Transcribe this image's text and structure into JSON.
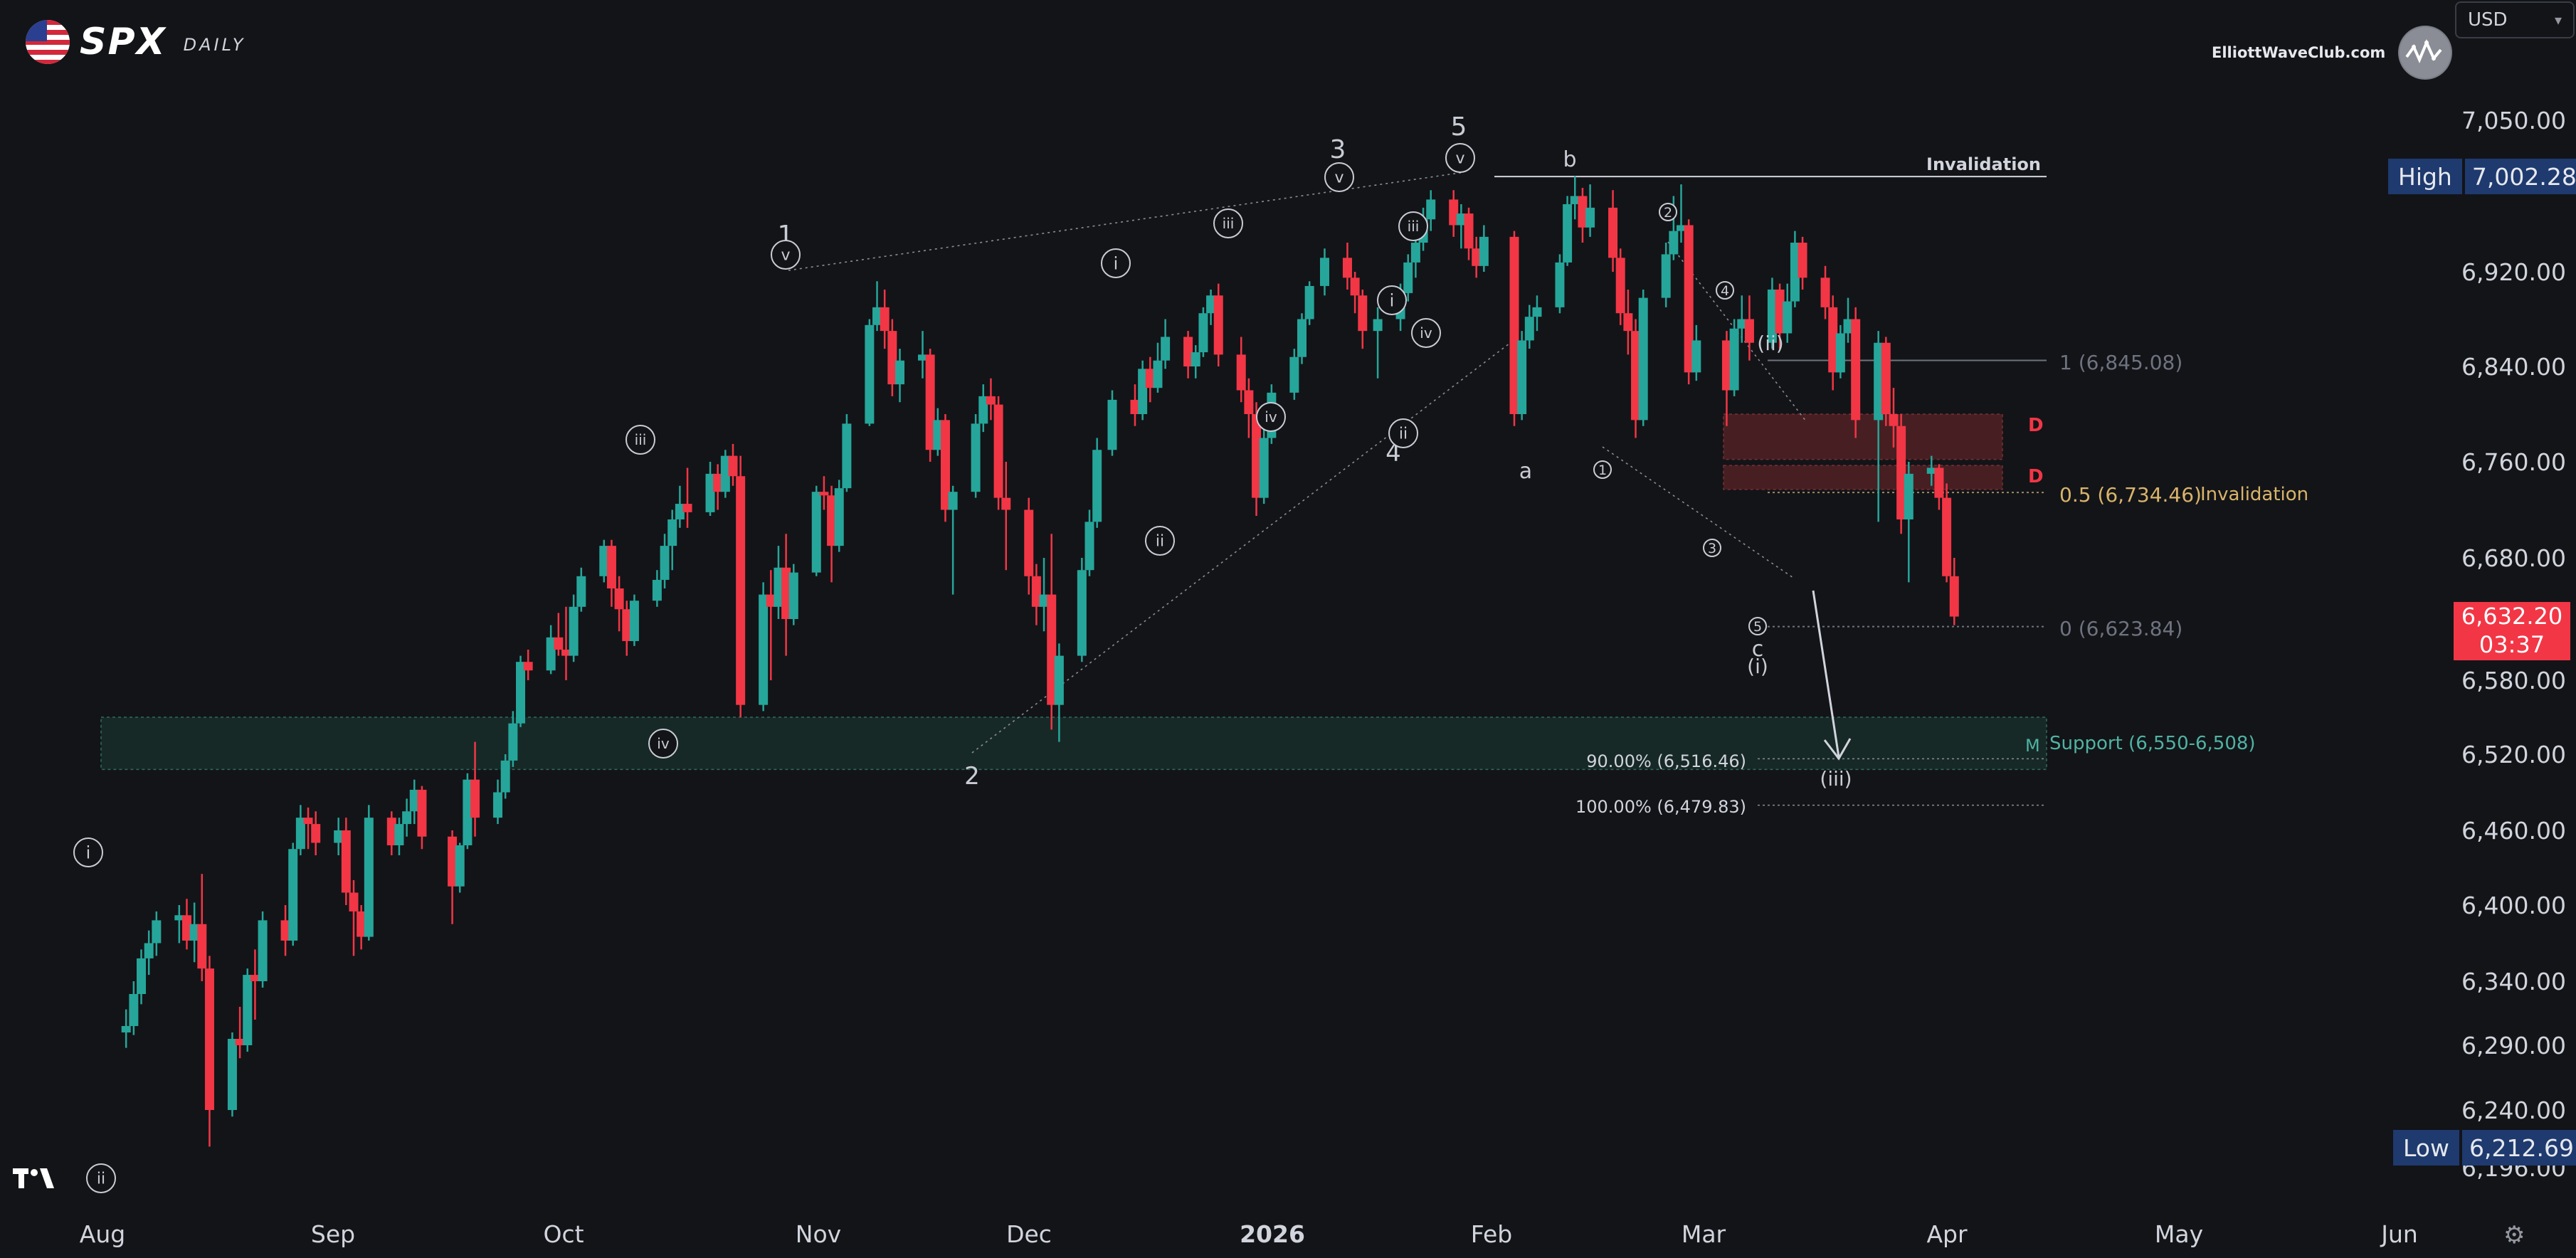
{
  "header": {
    "ticker": "SPX",
    "timeframe": "DAILY",
    "watermark": "ElliottWaveClub.com",
    "currency": "USD"
  },
  "colors": {
    "background": "#131418",
    "up": "#26a69a",
    "down": "#f23645",
    "text": "#d1d4dc",
    "label_box": "#1e3a6e",
    "support_zone": "#1c3b34",
    "resistance_zone": "#5a2326",
    "fib_gold": "#d8b46a",
    "fib_gray": "#6f7380",
    "support_text": "#4fb3a3"
  },
  "axis": {
    "price_labels": [
      "7,050.00",
      "6,920.00",
      "6,840.00",
      "6,760.00",
      "6,680.00",
      "6,580.00",
      "6,520.00",
      "6,460.00",
      "6,400.00",
      "6,340.00",
      "6,290.00",
      "6,240.00",
      "6,196.00"
    ],
    "month_labels": [
      "Aug",
      "Sep",
      "Oct",
      "Nov",
      "Dec",
      "2026",
      "Feb",
      "Mar",
      "Apr",
      "May",
      "Jun"
    ],
    "high_label": "High",
    "high_value": "7,002.28",
    "low_label": "Low",
    "low_value": "6,212.69",
    "last_price": "6,632.20",
    "countdown": "03:37"
  },
  "annotations": {
    "invalidation_top": "Invalidation",
    "invalidation_mid": "Invalidation",
    "fib_1": "1 (6,845.08)",
    "fib_05": "0.5 (6,734.46)",
    "fib_0": "0 (6,623.84)",
    "support": "Support (6,550-6,508)",
    "support_tag": "M",
    "ext_90": "90.00% (6,516.46)",
    "ext_100": "100.00% (6,479.83)",
    "zone_tag_1": "D",
    "zone_tag_2": "D"
  },
  "chart_data": {
    "type": "candlestick",
    "title": "SPX DAILY",
    "y_range": [
      6196,
      7050
    ],
    "x_range": [
      "2025-07-20",
      "2026-06-15"
    ],
    "candles": [
      [
        "2025-07-21",
        6300,
        6318,
        6288,
        6305
      ],
      [
        "2025-07-22",
        6305,
        6340,
        6298,
        6330
      ],
      [
        "2025-07-23",
        6330,
        6365,
        6322,
        6358
      ],
      [
        "2025-07-24",
        6358,
        6380,
        6345,
        6370
      ],
      [
        "2025-07-25",
        6370,
        6395,
        6360,
        6388
      ],
      [
        "2025-07-28",
        6388,
        6400,
        6370,
        6392
      ],
      [
        "2025-07-29",
        6392,
        6405,
        6365,
        6372
      ],
      [
        "2025-07-30",
        6372,
        6402,
        6355,
        6385
      ],
      [
        "2025-07-31",
        6385,
        6425,
        6340,
        6350
      ],
      [
        "2025-08-01",
        6350,
        6360,
        6212,
        6240
      ],
      [
        "2025-08-04",
        6240,
        6300,
        6235,
        6295
      ],
      [
        "2025-08-05",
        6295,
        6320,
        6280,
        6290
      ],
      [
        "2025-08-06",
        6290,
        6350,
        6285,
        6345
      ],
      [
        "2025-08-07",
        6345,
        6365,
        6310,
        6340
      ],
      [
        "2025-08-08",
        6340,
        6395,
        6335,
        6388
      ],
      [
        "2025-08-11",
        6388,
        6400,
        6360,
        6372
      ],
      [
        "2025-08-12",
        6372,
        6450,
        6368,
        6445
      ],
      [
        "2025-08-13",
        6445,
        6480,
        6440,
        6470
      ],
      [
        "2025-08-14",
        6470,
        6478,
        6445,
        6465
      ],
      [
        "2025-08-15",
        6465,
        6475,
        6440,
        6450
      ],
      [
        "2025-08-18",
        6450,
        6470,
        6440,
        6460
      ],
      [
        "2025-08-19",
        6460,
        6470,
        6400,
        6410
      ],
      [
        "2025-08-20",
        6410,
        6420,
        6360,
        6395
      ],
      [
        "2025-08-21",
        6395,
        6400,
        6365,
        6375
      ],
      [
        "2025-08-22",
        6375,
        6480,
        6372,
        6470
      ],
      [
        "2025-08-25",
        6470,
        6475,
        6440,
        6448
      ],
      [
        "2025-08-26",
        6448,
        6470,
        6440,
        6465
      ],
      [
        "2025-08-27",
        6465,
        6485,
        6455,
        6475
      ],
      [
        "2025-08-28",
        6475,
        6500,
        6465,
        6492
      ],
      [
        "2025-08-29",
        6492,
        6495,
        6445,
        6455
      ],
      [
        "2025-09-02",
        6455,
        6460,
        6385,
        6415
      ],
      [
        "2025-09-03",
        6415,
        6450,
        6410,
        6448
      ],
      [
        "2025-09-04",
        6448,
        6505,
        6445,
        6500
      ],
      [
        "2025-09-05",
        6500,
        6530,
        6455,
        6470
      ],
      [
        "2025-09-08",
        6470,
        6500,
        6465,
        6490
      ],
      [
        "2025-09-09",
        6490,
        6520,
        6485,
        6515
      ],
      [
        "2025-09-10",
        6515,
        6555,
        6510,
        6545
      ],
      [
        "2025-09-11",
        6545,
        6600,
        6542,
        6595
      ],
      [
        "2025-09-12",
        6595,
        6605,
        6580,
        6588
      ],
      [
        "2025-09-15",
        6588,
        6625,
        6585,
        6615
      ],
      [
        "2025-09-16",
        6615,
        6635,
        6600,
        6605
      ],
      [
        "2025-09-17",
        6605,
        6640,
        6580,
        6600
      ],
      [
        "2025-09-18",
        6600,
        6650,
        6595,
        6640
      ],
      [
        "2025-09-19",
        6640,
        6672,
        6636,
        6665
      ],
      [
        "2025-09-22",
        6665,
        6695,
        6660,
        6690
      ],
      [
        "2025-09-23",
        6690,
        6695,
        6640,
        6655
      ],
      [
        "2025-09-24",
        6655,
        6665,
        6620,
        6638
      ],
      [
        "2025-09-25",
        6638,
        6645,
        6600,
        6612
      ],
      [
        "2025-09-26",
        6612,
        6650,
        6608,
        6645
      ],
      [
        "2025-09-29",
        6645,
        6670,
        6640,
        6662
      ],
      [
        "2025-09-30",
        6662,
        6700,
        6655,
        6690
      ],
      [
        "2025-10-01",
        6690,
        6720,
        6670,
        6712
      ],
      [
        "2025-10-02",
        6712,
        6740,
        6705,
        6725
      ],
      [
        "2025-10-03",
        6725,
        6755,
        6705,
        6718
      ],
      [
        "2025-10-06",
        6718,
        6760,
        6715,
        6750
      ],
      [
        "2025-10-07",
        6750,
        6758,
        6720,
        6735
      ],
      [
        "2025-10-08",
        6735,
        6770,
        6730,
        6765
      ],
      [
        "2025-10-09",
        6765,
        6775,
        6740,
        6748
      ],
      [
        "2025-10-10",
        6748,
        6765,
        6550,
        6560
      ],
      [
        "2025-10-13",
        6560,
        6660,
        6555,
        6650
      ],
      [
        "2025-10-14",
        6650,
        6670,
        6580,
        6640
      ],
      [
        "2025-10-15",
        6640,
        6690,
        6630,
        6672
      ],
      [
        "2025-10-16",
        6672,
        6700,
        6600,
        6630
      ],
      [
        "2025-10-17",
        6630,
        6675,
        6625,
        6668
      ],
      [
        "2025-10-20",
        6668,
        6740,
        6665,
        6735
      ],
      [
        "2025-10-21",
        6735,
        6748,
        6720,
        6732
      ],
      [
        "2025-10-22",
        6732,
        6740,
        6660,
        6690
      ],
      [
        "2025-10-23",
        6690,
        6745,
        6685,
        6738
      ],
      [
        "2025-10-24",
        6738,
        6800,
        6735,
        6792
      ],
      [
        "2025-10-27",
        6792,
        6880,
        6790,
        6875
      ],
      [
        "2025-10-28",
        6875,
        6912,
        6870,
        6890
      ],
      [
        "2025-10-29",
        6890,
        6905,
        6855,
        6870
      ],
      [
        "2025-10-30",
        6870,
        6880,
        6815,
        6825
      ],
      [
        "2025-10-31",
        6825,
        6855,
        6810,
        6845
      ],
      [
        "2025-11-03",
        6845,
        6870,
        6830,
        6850
      ],
      [
        "2025-11-04",
        6850,
        6855,
        6760,
        6770
      ],
      [
        "2025-11-05",
        6770,
        6805,
        6765,
        6795
      ],
      [
        "2025-11-06",
        6795,
        6800,
        6710,
        6720
      ],
      [
        "2025-11-07",
        6720,
        6740,
        6650,
        6735
      ],
      [
        "2025-11-10",
        6735,
        6800,
        6730,
        6792
      ],
      [
        "2025-11-11",
        6792,
        6825,
        6785,
        6815
      ],
      [
        "2025-11-12",
        6815,
        6830,
        6795,
        6808
      ],
      [
        "2025-11-13",
        6808,
        6815,
        6720,
        6730
      ],
      [
        "2025-11-14",
        6730,
        6760,
        6670,
        6720
      ],
      [
        "2025-11-17",
        6720,
        6730,
        6650,
        6665
      ],
      [
        "2025-11-18",
        6665,
        6675,
        6625,
        6640
      ],
      [
        "2025-11-19",
        6640,
        6680,
        6620,
        6650
      ],
      [
        "2025-11-20",
        6650,
        6700,
        6540,
        6560
      ],
      [
        "2025-11-21",
        6560,
        6610,
        6530,
        6600
      ],
      [
        "2025-11-24",
        6600,
        6680,
        6595,
        6670
      ],
      [
        "2025-11-25",
        6670,
        6720,
        6665,
        6710
      ],
      [
        "2025-11-26",
        6710,
        6780,
        6705,
        6770
      ],
      [
        "2025-11-28",
        6770,
        6820,
        6765,
        6812
      ],
      [
        "2025-12-01",
        6812,
        6825,
        6790,
        6800
      ],
      [
        "2025-12-02",
        6800,
        6845,
        6795,
        6838
      ],
      [
        "2025-12-03",
        6838,
        6848,
        6810,
        6822
      ],
      [
        "2025-12-04",
        6822,
        6860,
        6818,
        6845
      ],
      [
        "2025-12-05",
        6845,
        6880,
        6838,
        6865
      ],
      [
        "2025-12-08",
        6865,
        6870,
        6830,
        6840
      ],
      [
        "2025-12-09",
        6840,
        6858,
        6830,
        6852
      ],
      [
        "2025-12-10",
        6852,
        6890,
        6848,
        6885
      ],
      [
        "2025-12-11",
        6885,
        6905,
        6875,
        6900
      ],
      [
        "2025-12-12",
        6900,
        6910,
        6840,
        6850
      ],
      [
        "2025-12-15",
        6850,
        6865,
        6810,
        6820
      ],
      [
        "2025-12-16",
        6820,
        6830,
        6780,
        6800
      ],
      [
        "2025-12-17",
        6800,
        6810,
        6715,
        6730
      ],
      [
        "2025-12-18",
        6730,
        6790,
        6725,
        6780
      ],
      [
        "2025-12-19",
        6780,
        6825,
        6775,
        6818
      ],
      [
        "2025-12-22",
        6818,
        6855,
        6812,
        6848
      ],
      [
        "2025-12-23",
        6848,
        6885,
        6842,
        6880
      ],
      [
        "2025-12-24",
        6880,
        6912,
        6875,
        6908
      ],
      [
        "2025-12-26",
        6908,
        6940,
        6900,
        6932
      ],
      [
        "2025-12-29",
        6932,
        6945,
        6905,
        6915
      ],
      [
        "2025-12-30",
        6915,
        6920,
        6885,
        6900
      ],
      [
        "2025-12-31",
        6900,
        6905,
        6855,
        6870
      ],
      [
        "2026-01-02",
        6870,
        6890,
        6830,
        6880
      ],
      [
        "2026-01-05",
        6880,
        6910,
        6870,
        6902
      ],
      [
        "2026-01-06",
        6902,
        6935,
        6895,
        6928
      ],
      [
        "2026-01-07",
        6928,
        6950,
        6915,
        6945
      ],
      [
        "2026-01-08",
        6945,
        6975,
        6938,
        6965
      ],
      [
        "2026-01-09",
        6965,
        6990,
        6955,
        6982
      ],
      [
        "2026-01-12",
        6982,
        6990,
        6950,
        6960
      ],
      [
        "2026-01-13",
        6960,
        6978,
        6940,
        6970
      ],
      [
        "2026-01-14",
        6970,
        6975,
        6930,
        6940
      ],
      [
        "2026-01-15",
        6940,
        6950,
        6915,
        6925
      ],
      [
        "2026-01-16",
        6925,
        6960,
        6920,
        6950
      ],
      [
        "2026-01-20",
        6950,
        6955,
        6790,
        6800
      ],
      [
        "2026-01-21",
        6800,
        6870,
        6795,
        6862
      ],
      [
        "2026-01-22",
        6862,
        6892,
        6855,
        6882
      ],
      [
        "2026-01-23",
        6882,
        6900,
        6870,
        6890
      ],
      [
        "2026-01-26",
        6890,
        6935,
        6885,
        6928
      ],
      [
        "2026-01-27",
        6928,
        6985,
        6925,
        6978
      ],
      [
        "2026-01-28",
        6978,
        7002,
        6965,
        6985
      ],
      [
        "2026-01-29",
        6985,
        6992,
        6945,
        6958
      ],
      [
        "2026-01-30",
        6958,
        6995,
        6950,
        6975
      ],
      [
        "2026-02-02",
        6975,
        6990,
        6920,
        6932
      ],
      [
        "2026-02-03",
        6932,
        6940,
        6875,
        6885
      ],
      [
        "2026-02-04",
        6885,
        6905,
        6850,
        6870
      ],
      [
        "2026-02-05",
        6870,
        6880,
        6780,
        6795
      ],
      [
        "2026-02-06",
        6795,
        6905,
        6790,
        6898
      ],
      [
        "2026-02-09",
        6898,
        6945,
        6890,
        6935
      ],
      [
        "2026-02-10",
        6935,
        6985,
        6930,
        6955
      ],
      [
        "2026-02-11",
        6955,
        6995,
        6945,
        6960
      ],
      [
        "2026-02-12",
        6960,
        6965,
        6825,
        6835
      ],
      [
        "2026-02-13",
        6835,
        6875,
        6828,
        6862
      ],
      [
        "2026-02-17",
        6862,
        6870,
        6790,
        6820
      ],
      [
        "2026-02-18",
        6820,
        6880,
        6815,
        6872
      ],
      [
        "2026-02-19",
        6872,
        6900,
        6860,
        6880
      ],
      [
        "2026-02-20",
        6880,
        6900,
        6845,
        6860
      ],
      [
        "2026-02-23",
        6860,
        6915,
        6855,
        6905
      ],
      [
        "2026-02-24",
        6905,
        6910,
        6855,
        6868
      ],
      [
        "2026-02-25",
        6868,
        6910,
        6860,
        6895
      ],
      [
        "2026-02-26",
        6895,
        6955,
        6890,
        6945
      ],
      [
        "2026-02-27",
        6945,
        6950,
        6905,
        6915
      ],
      [
        "2026-03-02",
        6915,
        6925,
        6880,
        6890
      ],
      [
        "2026-03-03",
        6890,
        6900,
        6820,
        6835
      ],
      [
        "2026-03-04",
        6835,
        6875,
        6830,
        6868
      ],
      [
        "2026-03-05",
        6868,
        6898,
        6860,
        6880
      ],
      [
        "2026-03-06",
        6880,
        6890,
        6780,
        6795
      ],
      [
        "2026-03-09",
        6795,
        6870,
        6710,
        6860
      ],
      [
        "2026-03-10",
        6860,
        6865,
        6790,
        6800
      ],
      [
        "2026-03-11",
        6800,
        6822,
        6772,
        6790
      ],
      [
        "2026-03-12",
        6790,
        6800,
        6700,
        6712
      ],
      [
        "2026-03-13",
        6712,
        6760,
        6660,
        6750
      ],
      [
        "2026-03-16",
        6750,
        6765,
        6740,
        6755
      ],
      [
        "2026-03-17",
        6755,
        6758,
        6720,
        6730
      ],
      [
        "2026-03-18",
        6730,
        6742,
        6660,
        6665
      ],
      [
        "2026-03-19",
        6665,
        6680,
        6625,
        6632
      ]
    ]
  }
}
